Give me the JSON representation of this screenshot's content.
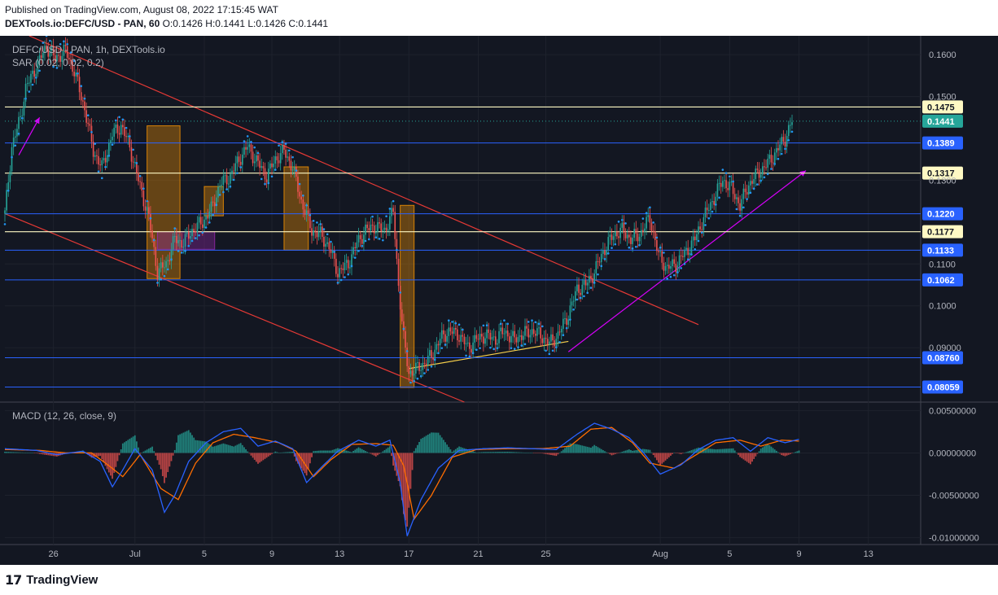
{
  "header": {
    "published": "Published on TradingView.com, August 08, 2022 17:15:45 WAT",
    "symbol": "DEXTools.io:DEFC/USD - PAN, 60",
    "ohlc": "O:0.1426 H:0.1441 L:0.1426 C:0.1441"
  },
  "footer": {
    "brand": "TradingView",
    "logo_icon": "tradingview-logo-icon"
  },
  "colors": {
    "background": "#131722",
    "grid": "#1e222d",
    "up": "#26a69a",
    "down": "#ef5350",
    "sar": "#2196f3",
    "channel": "#e53935",
    "support": "#2962ff",
    "highlight": "#fff9c4",
    "trendline_magenta": "#d500f9",
    "trendline_yellow": "#f7d04b",
    "macd_line": "#2962ff",
    "signal_line": "#ff6d00"
  },
  "chart_data": [
    {
      "type": "candlestick",
      "legend": "DEFC/USD - PAN, 1h, DEXTools.io",
      "indicator": "SAR (0.02, 0.02, 0.2)",
      "x_labels": [
        "26",
        "Jul",
        "5",
        "9",
        "13",
        "17",
        "21",
        "25",
        "Aug",
        "5",
        "9",
        "13"
      ],
      "ylim": [
        0.077,
        0.1645
      ],
      "y_ticks": [
        "0.1600",
        "0.1500",
        "0.1300",
        "0.1100",
        "0.1000",
        "0.09000"
      ],
      "last_price": 0.1441,
      "levels": [
        {
          "label": "0.1475",
          "value": 0.1475,
          "style": "highlight"
        },
        {
          "label": "0.1389",
          "value": 0.1389,
          "style": "support"
        },
        {
          "label": "0.1317",
          "value": 0.1317,
          "style": "highlight"
        },
        {
          "label": "0.1220",
          "value": 0.122,
          "style": "support"
        },
        {
          "label": "0.1177",
          "value": 0.1177,
          "style": "highlight"
        },
        {
          "label": "0.1133",
          "value": 0.1133,
          "style": "support"
        },
        {
          "label": "0.1062",
          "value": 0.1062,
          "style": "support"
        },
        {
          "label": "0.08760",
          "value": 0.0876,
          "style": "support"
        },
        {
          "label": "0.08059",
          "value": 0.08059,
          "style": "support"
        }
      ],
      "price_path": [
        [
          0,
          0.122
        ],
        [
          4,
          0.138
        ],
        [
          9,
          0.145
        ],
        [
          12,
          0.152
        ],
        [
          18,
          0.157
        ],
        [
          24,
          0.162
        ],
        [
          29,
          0.159
        ],
        [
          35,
          0.161
        ],
        [
          40,
          0.156
        ],
        [
          46,
          0.147
        ],
        [
          51,
          0.137
        ],
        [
          56,
          0.133
        ],
        [
          62,
          0.141
        ],
        [
          67,
          0.143
        ],
        [
          72,
          0.138
        ],
        [
          77,
          0.13
        ],
        [
          83,
          0.121
        ],
        [
          88,
          0.108
        ],
        [
          93,
          0.11
        ],
        [
          98,
          0.116
        ],
        [
          103,
          0.115
        ],
        [
          108,
          0.118
        ],
        [
          114,
          0.12
        ],
        [
          119,
          0.123
        ],
        [
          124,
          0.129
        ],
        [
          130,
          0.131
        ],
        [
          135,
          0.135
        ],
        [
          140,
          0.138
        ],
        [
          146,
          0.134
        ],
        [
          151,
          0.131
        ],
        [
          156,
          0.135
        ],
        [
          161,
          0.137
        ],
        [
          166,
          0.133
        ],
        [
          171,
          0.125
        ],
        [
          177,
          0.118
        ],
        [
          182,
          0.117
        ],
        [
          187,
          0.114
        ],
        [
          192,
          0.108
        ],
        [
          198,
          0.11
        ],
        [
          203,
          0.115
        ],
        [
          208,
          0.118
        ],
        [
          213,
          0.119
        ],
        [
          219,
          0.118
        ],
        [
          224,
          0.1225
        ],
        [
          227,
          0.105
        ],
        [
          230,
          0.092
        ],
        [
          233,
          0.084
        ],
        [
          236,
          0.0845
        ],
        [
          241,
          0.086
        ],
        [
          246,
          0.088
        ],
        [
          251,
          0.092
        ],
        [
          256,
          0.094
        ],
        [
          262,
          0.093
        ],
        [
          267,
          0.09
        ],
        [
          272,
          0.092
        ],
        [
          277,
          0.093
        ],
        [
          283,
          0.092
        ],
        [
          288,
          0.094
        ],
        [
          293,
          0.092
        ],
        [
          298,
          0.093
        ],
        [
          304,
          0.094
        ],
        [
          309,
          0.093
        ],
        [
          314,
          0.091
        ],
        [
          319,
          0.093
        ],
        [
          325,
          0.098
        ],
        [
          330,
          0.104
        ],
        [
          335,
          0.105
        ],
        [
          340,
          0.108
        ],
        [
          345,
          0.113
        ],
        [
          351,
          0.117
        ],
        [
          356,
          0.118
        ],
        [
          361,
          0.116
        ],
        [
          366,
          0.117
        ],
        [
          372,
          0.121
        ],
        [
          377,
          0.112
        ],
        [
          382,
          0.109
        ],
        [
          387,
          0.11
        ],
        [
          393,
          0.113
        ],
        [
          398,
          0.116
        ],
        [
          403,
          0.121
        ],
        [
          408,
          0.125
        ],
        [
          414,
          0.13
        ],
        [
          419,
          0.128
        ],
        [
          424,
          0.124
        ],
        [
          429,
          0.129
        ],
        [
          435,
          0.132
        ],
        [
          440,
          0.134
        ],
        [
          445,
          0.137
        ],
        [
          450,
          0.14
        ],
        [
          454,
          0.1441
        ]
      ],
      "candles_approx": true,
      "annotations": [
        {
          "type": "channel_upper",
          "from": [
            14,
            0.1645
          ],
          "to": [
            400,
            0.0955
          ],
          "color": "#e53935"
        },
        {
          "type": "channel_lower",
          "from": [
            0,
            0.122
          ],
          "to": [
            265,
            0.077
          ],
          "color": "#e53935"
        },
        {
          "type": "trendline",
          "from": [
            8,
            0.136
          ],
          "to": [
            20,
            0.145
          ],
          "color": "#d500f9",
          "arrow": true
        },
        {
          "type": "trendline",
          "from": [
            325,
            0.089
          ],
          "to": [
            462,
            0.1323
          ],
          "color": "#d500f9",
          "arrow": true
        },
        {
          "type": "trendline",
          "from": [
            233,
            0.085
          ],
          "to": [
            325,
            0.0915
          ],
          "color": "#f7d04b"
        },
        {
          "type": "box",
          "x": [
            82,
            101
          ],
          "y": [
            0.1065,
            0.143
          ],
          "fill": "#ff9800"
        },
        {
          "type": "box",
          "x": [
            88,
            121
          ],
          "y": [
            0.1135,
            0.1177
          ],
          "fill": "#9c27b0"
        },
        {
          "type": "box",
          "x": [
            115,
            126
          ],
          "y": [
            0.1215,
            0.1285
          ],
          "fill": "#ff9800"
        },
        {
          "type": "box",
          "x": [
            161,
            175
          ],
          "y": [
            0.1133,
            0.1332
          ],
          "fill": "#ff9800"
        },
        {
          "type": "box",
          "x": [
            228,
            236
          ],
          "y": [
            0.0805,
            0.124
          ],
          "fill": "#ff9800"
        }
      ]
    },
    {
      "type": "histogram+line",
      "legend": "MACD (12, 26, close, 9)",
      "ylim": [
        -0.0108,
        0.0058
      ],
      "y_ticks": [
        "0.00500000",
        "0.00000000",
        "-0.00500000",
        "-0.01000000"
      ],
      "macd_path": [
        [
          0,
          0.0005
        ],
        [
          18,
          0.0003
        ],
        [
          30,
          -0.0002
        ],
        [
          45,
          0.0002
        ],
        [
          55,
          -0.001
        ],
        [
          62,
          -0.004
        ],
        [
          68,
          -0.002
        ],
        [
          75,
          0.0005
        ],
        [
          85,
          -0.002
        ],
        [
          92,
          -0.007
        ],
        [
          98,
          -0.005
        ],
        [
          106,
          -0.001
        ],
        [
          116,
          0.0012
        ],
        [
          126,
          0.0025
        ],
        [
          136,
          0.0029
        ],
        [
          146,
          0.0008
        ],
        [
          156,
          0.0014
        ],
        [
          166,
          0.0005
        ],
        [
          174,
          -0.0035
        ],
        [
          182,
          -0.0018
        ],
        [
          192,
          0.0002
        ],
        [
          204,
          0.0015
        ],
        [
          214,
          0.0008
        ],
        [
          222,
          0.0015
        ],
        [
          228,
          -0.0035
        ],
        [
          232,
          -0.0098
        ],
        [
          240,
          -0.0055
        ],
        [
          250,
          -0.0018
        ],
        [
          262,
          0.0003
        ],
        [
          276,
          0.0005
        ],
        [
          290,
          0.0006
        ],
        [
          304,
          0.0005
        ],
        [
          318,
          0.0004
        ],
        [
          330,
          0.0022
        ],
        [
          340,
          0.0035
        ],
        [
          350,
          0.0028
        ],
        [
          360,
          0.0018
        ],
        [
          368,
          0.0001
        ],
        [
          378,
          -0.0025
        ],
        [
          390,
          -0.0014
        ],
        [
          400,
          0.0004
        ],
        [
          410,
          0.0015
        ],
        [
          420,
          0.0018
        ],
        [
          430,
          0.0002
        ],
        [
          440,
          0.0018
        ],
        [
          450,
          0.0012
        ],
        [
          458,
          0.0016
        ]
      ],
      "signal_path": [
        [
          0,
          0.0004
        ],
        [
          20,
          0.0003
        ],
        [
          35,
          0.0
        ],
        [
          50,
          0.0
        ],
        [
          60,
          -0.0015
        ],
        [
          68,
          -0.0028
        ],
        [
          78,
          -0.0002
        ],
        [
          90,
          -0.0042
        ],
        [
          100,
          -0.0055
        ],
        [
          110,
          -0.0012
        ],
        [
          120,
          0.0012
        ],
        [
          132,
          0.0022
        ],
        [
          144,
          0.0018
        ],
        [
          158,
          0.0012
        ],
        [
          168,
          0.0002
        ],
        [
          178,
          -0.0028
        ],
        [
          188,
          -0.0008
        ],
        [
          200,
          0.001
        ],
        [
          214,
          0.0011
        ],
        [
          224,
          0.0009
        ],
        [
          230,
          -0.0015
        ],
        [
          236,
          -0.0078
        ],
        [
          246,
          -0.005
        ],
        [
          258,
          -0.0005
        ],
        [
          272,
          0.0004
        ],
        [
          290,
          0.0005
        ],
        [
          310,
          0.0005
        ],
        [
          326,
          0.0008
        ],
        [
          338,
          0.0028
        ],
        [
          350,
          0.003
        ],
        [
          362,
          0.0012
        ],
        [
          372,
          -0.0012
        ],
        [
          386,
          -0.0018
        ],
        [
          398,
          -0.0003
        ],
        [
          410,
          0.0012
        ],
        [
          424,
          0.0015
        ],
        [
          436,
          0.0008
        ],
        [
          448,
          0.0015
        ],
        [
          458,
          0.0014
        ]
      ]
    }
  ]
}
